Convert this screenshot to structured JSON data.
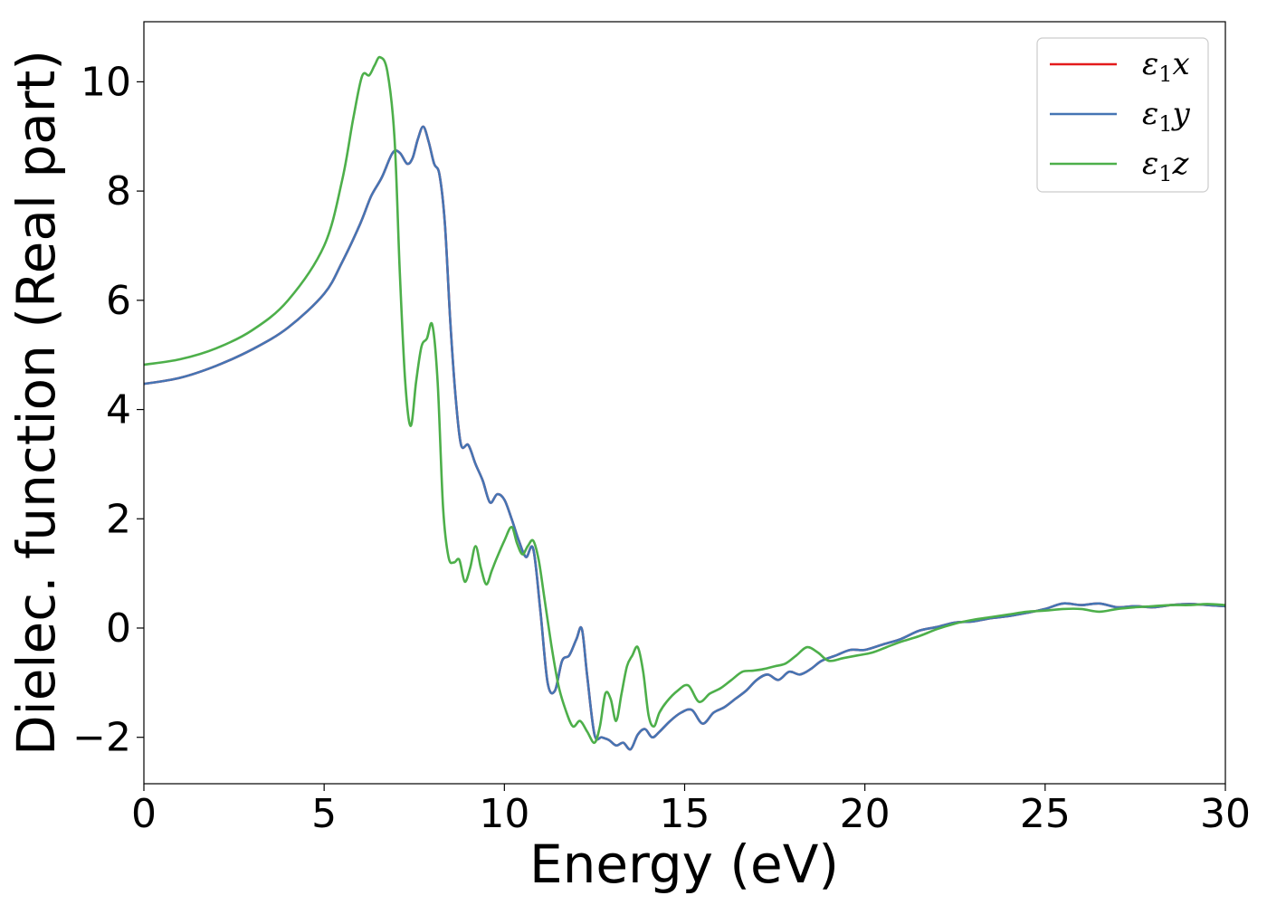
{
  "chart_data": {
    "type": "line",
    "xlabel": "Energy (eV)",
    "ylabel": "Dielec. function (Real part)",
    "xlim": [
      0,
      30
    ],
    "ylim": [
      -2.85,
      11.1
    ],
    "xticks": [
      0,
      5,
      10,
      15,
      20,
      25,
      30
    ],
    "xtick_labels": [
      "0",
      "5",
      "10",
      "15",
      "20",
      "25",
      "30"
    ],
    "yticks": [
      -2,
      0,
      2,
      4,
      6,
      8,
      10
    ],
    "ytick_labels": [
      "−2",
      "0",
      "2",
      "4",
      "6",
      "8",
      "10"
    ],
    "grid": false,
    "legend_position": "top-right",
    "series": [
      {
        "name": "ε₁x",
        "legend_main": "ε",
        "legend_sub": "1",
        "legend_var": "x",
        "color": "#e41a1c",
        "hidden_under": "ε₁y",
        "x": [
          0,
          1,
          2,
          3,
          4,
          5,
          5.5,
          6,
          6.3,
          6.6,
          6.9,
          7.1,
          7.3,
          7.45,
          7.6,
          7.75,
          7.9,
          8.05,
          8.2,
          8.35,
          8.5,
          8.65,
          8.8,
          9.0,
          9.2,
          9.4,
          9.6,
          9.8,
          10.0,
          10.2,
          10.4,
          10.6,
          10.8,
          11.0,
          11.2,
          11.4,
          11.6,
          11.8,
          12.0,
          12.15,
          12.3,
          12.5,
          12.7,
          12.9,
          13.1,
          13.3,
          13.5,
          13.7,
          13.9,
          14.1,
          14.3,
          14.6,
          14.9,
          15.2,
          15.5,
          15.8,
          16.1,
          16.4,
          16.7,
          17.0,
          17.3,
          17.6,
          17.9,
          18.2,
          18.5,
          18.8,
          19.2,
          19.6,
          20.0,
          20.5,
          21.0,
          21.5,
          22.0,
          22.5,
          23.0,
          23.5,
          24.0,
          24.5,
          25.0,
          25.5,
          26.0,
          26.5,
          27.0,
          27.5,
          28.0,
          28.5,
          29.0,
          29.5,
          30.0
        ],
        "y": [
          4.47,
          4.58,
          4.8,
          5.1,
          5.5,
          6.12,
          6.7,
          7.4,
          7.9,
          8.25,
          8.7,
          8.7,
          8.5,
          8.6,
          8.95,
          9.18,
          8.9,
          8.5,
          8.3,
          7.4,
          5.6,
          4.2,
          3.35,
          3.35,
          3.0,
          2.7,
          2.3,
          2.45,
          2.35,
          2.0,
          1.6,
          1.3,
          1.45,
          0.3,
          -1.0,
          -1.15,
          -0.6,
          -0.5,
          -0.2,
          -0.02,
          -0.9,
          -1.95,
          -2.0,
          -2.05,
          -2.15,
          -2.1,
          -2.22,
          -1.95,
          -1.85,
          -2.0,
          -1.9,
          -1.7,
          -1.55,
          -1.5,
          -1.75,
          -1.55,
          -1.45,
          -1.3,
          -1.15,
          -0.95,
          -0.85,
          -0.95,
          -0.8,
          -0.85,
          -0.75,
          -0.6,
          -0.5,
          -0.4,
          -0.4,
          -0.3,
          -0.2,
          -0.05,
          0.02,
          0.1,
          0.12,
          0.18,
          0.22,
          0.28,
          0.35,
          0.45,
          0.42,
          0.45,
          0.38,
          0.4,
          0.38,
          0.42,
          0.44,
          0.42,
          0.4
        ]
      },
      {
        "name": "ε₁y",
        "legend_main": "ε",
        "legend_sub": "1",
        "legend_var": "y",
        "color": "#4575b4",
        "x": [
          0,
          1,
          2,
          3,
          4,
          5,
          5.5,
          6,
          6.3,
          6.6,
          6.9,
          7.1,
          7.3,
          7.45,
          7.6,
          7.75,
          7.9,
          8.05,
          8.2,
          8.35,
          8.5,
          8.65,
          8.8,
          9.0,
          9.2,
          9.4,
          9.6,
          9.8,
          10.0,
          10.2,
          10.4,
          10.6,
          10.8,
          11.0,
          11.2,
          11.4,
          11.6,
          11.8,
          12.0,
          12.15,
          12.3,
          12.5,
          12.7,
          12.9,
          13.1,
          13.3,
          13.5,
          13.7,
          13.9,
          14.1,
          14.3,
          14.6,
          14.9,
          15.2,
          15.5,
          15.8,
          16.1,
          16.4,
          16.7,
          17.0,
          17.3,
          17.6,
          17.9,
          18.2,
          18.5,
          18.8,
          19.2,
          19.6,
          20.0,
          20.5,
          21.0,
          21.5,
          22.0,
          22.5,
          23.0,
          23.5,
          24.0,
          24.5,
          25.0,
          25.5,
          26.0,
          26.5,
          27.0,
          27.5,
          28.0,
          28.5,
          29.0,
          29.5,
          30.0
        ],
        "y": [
          4.47,
          4.58,
          4.8,
          5.1,
          5.5,
          6.12,
          6.7,
          7.4,
          7.9,
          8.25,
          8.7,
          8.7,
          8.5,
          8.6,
          8.95,
          9.18,
          8.9,
          8.5,
          8.3,
          7.4,
          5.6,
          4.2,
          3.35,
          3.35,
          3.0,
          2.7,
          2.3,
          2.45,
          2.35,
          2.0,
          1.6,
          1.3,
          1.45,
          0.3,
          -1.0,
          -1.15,
          -0.6,
          -0.5,
          -0.2,
          -0.02,
          -0.9,
          -1.95,
          -2.0,
          -2.05,
          -2.15,
          -2.1,
          -2.22,
          -1.95,
          -1.85,
          -2.0,
          -1.9,
          -1.7,
          -1.55,
          -1.5,
          -1.75,
          -1.55,
          -1.45,
          -1.3,
          -1.15,
          -0.95,
          -0.85,
          -0.95,
          -0.8,
          -0.85,
          -0.75,
          -0.6,
          -0.5,
          -0.4,
          -0.4,
          -0.3,
          -0.2,
          -0.05,
          0.02,
          0.1,
          0.12,
          0.18,
          0.22,
          0.28,
          0.35,
          0.45,
          0.42,
          0.45,
          0.38,
          0.4,
          0.38,
          0.42,
          0.44,
          0.42,
          0.4
        ]
      },
      {
        "name": "ε₁z",
        "legend_main": "ε",
        "legend_sub": "1",
        "legend_var": "z",
        "color": "#4daf4a",
        "x": [
          0,
          1,
          2,
          3,
          4,
          5,
          5.5,
          5.8,
          6.05,
          6.25,
          6.4,
          6.55,
          6.75,
          6.95,
          7.1,
          7.25,
          7.4,
          7.55,
          7.7,
          7.85,
          8.0,
          8.15,
          8.3,
          8.45,
          8.6,
          8.75,
          8.9,
          9.05,
          9.2,
          9.35,
          9.5,
          9.65,
          9.8,
          10.0,
          10.2,
          10.35,
          10.5,
          10.65,
          10.8,
          10.95,
          11.1,
          11.3,
          11.5,
          11.7,
          11.9,
          12.1,
          12.3,
          12.5,
          12.65,
          12.8,
          12.95,
          13.1,
          13.25,
          13.4,
          13.55,
          13.7,
          13.85,
          14.0,
          14.15,
          14.3,
          14.5,
          14.8,
          15.1,
          15.4,
          15.7,
          16.0,
          16.3,
          16.6,
          16.9,
          17.2,
          17.5,
          17.8,
          18.1,
          18.4,
          18.7,
          19.0,
          19.4,
          19.8,
          20.2,
          20.6,
          21.0,
          21.5,
          22.0,
          22.5,
          23.0,
          23.5,
          24.0,
          24.5,
          25.0,
          25.5,
          26.0,
          26.5,
          27.0,
          27.5,
          28.0,
          28.5,
          29.0,
          29.5,
          30.0
        ],
        "y": [
          4.82,
          4.92,
          5.12,
          5.45,
          6.0,
          7.0,
          8.2,
          9.3,
          10.1,
          10.12,
          10.3,
          10.45,
          10.2,
          9.0,
          6.5,
          4.5,
          3.7,
          4.5,
          5.15,
          5.3,
          5.55,
          4.5,
          2.2,
          1.3,
          1.2,
          1.25,
          0.85,
          1.1,
          1.5,
          1.1,
          0.8,
          1.05,
          1.3,
          1.6,
          1.85,
          1.55,
          1.35,
          1.5,
          1.6,
          1.25,
          0.6,
          -0.3,
          -1.05,
          -1.5,
          -1.8,
          -1.7,
          -1.9,
          -2.1,
          -1.8,
          -1.2,
          -1.3,
          -1.7,
          -1.2,
          -0.7,
          -0.5,
          -0.35,
          -0.8,
          -1.6,
          -1.8,
          -1.55,
          -1.35,
          -1.15,
          -1.05,
          -1.35,
          -1.2,
          -1.1,
          -0.95,
          -0.8,
          -0.78,
          -0.75,
          -0.7,
          -0.65,
          -0.5,
          -0.35,
          -0.45,
          -0.6,
          -0.55,
          -0.5,
          -0.45,
          -0.35,
          -0.25,
          -0.15,
          -0.02,
          0.08,
          0.15,
          0.2,
          0.25,
          0.3,
          0.32,
          0.35,
          0.35,
          0.3,
          0.35,
          0.38,
          0.4,
          0.42,
          0.42,
          0.44,
          0.42
        ]
      }
    ]
  }
}
